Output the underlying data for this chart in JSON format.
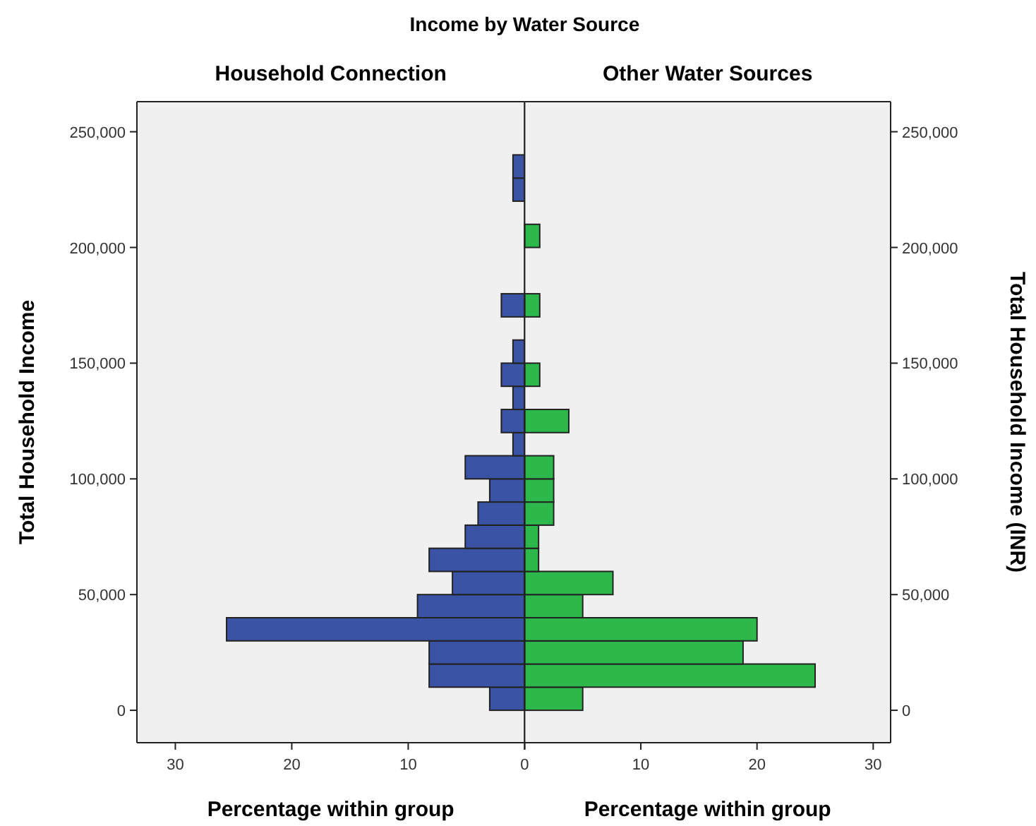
{
  "chart_data": [
    {
      "type": "histogram",
      "orientation": "horizontal",
      "title": "Income by Water Source",
      "subtitle": "Household Connection",
      "xlabel": "Percentage within group",
      "ylabel": "Total Household Income",
      "color": "#3a53a4",
      "bins": [
        0,
        10000,
        20000,
        30000,
        40000,
        50000,
        60000,
        70000,
        80000,
        90000,
        100000,
        110000,
        120000,
        130000,
        140000,
        150000,
        160000,
        170000,
        180000,
        190000,
        200000,
        210000,
        220000,
        230000,
        240000
      ],
      "values": [
        3.0,
        8.2,
        8.2,
        25.6,
        9.2,
        6.2,
        8.2,
        5.1,
        4.0,
        3.0,
        5.1,
        1.0,
        2.0,
        1.0,
        2.0,
        1.0,
        0,
        2.0,
        0,
        0,
        0,
        0,
        1.0,
        1.0
      ],
      "xlim": [
        33.3,
        0
      ],
      "xticks": [
        {
          "value": 0,
          "label": null
        },
        10,
        20,
        30
      ],
      "ylim": [
        -14000,
        263000
      ],
      "yticks": [
        0,
        {
          "value": 50000,
          "label": "50,000"
        },
        {
          "value": 100000,
          "label": "100,000"
        },
        {
          "value": 150000,
          "label": "150,000"
        },
        {
          "value": 200000,
          "label": "200,000"
        },
        {
          "value": 250000,
          "label": "250,000"
        }
      ]
    },
    {
      "type": "histogram",
      "orientation": "horizontal",
      "subtitle": "Other Water Sources",
      "xlabel": "Percentage within group",
      "ylabel": "Total Household Income (INR)",
      "color": "#2db84b",
      "bins": [
        0,
        10000,
        20000,
        30000,
        40000,
        50000,
        60000,
        70000,
        80000,
        90000,
        100000,
        110000,
        120000,
        130000,
        140000,
        150000,
        160000,
        170000,
        180000,
        190000,
        200000,
        210000,
        220000,
        230000,
        240000
      ],
      "values": [
        5.0,
        25.0,
        18.8,
        20.0,
        5.0,
        7.6,
        1.2,
        1.2,
        2.5,
        2.5,
        2.5,
        0,
        3.8,
        0,
        1.3,
        0,
        0,
        1.3,
        0,
        0,
        1.3,
        0,
        0,
        0
      ],
      "xlim": [
        0,
        31.5
      ],
      "xticks": [
        0,
        10,
        20,
        30
      ],
      "ylim": [
        -14000,
        263000
      ],
      "yticks": [
        0,
        {
          "value": 50000,
          "label": "50,000"
        },
        {
          "value": 100000,
          "label": "100,000"
        },
        {
          "value": 150000,
          "label": "150,000"
        },
        {
          "value": 200000,
          "label": "200,000"
        },
        {
          "value": 250000,
          "label": "250,000"
        }
      ]
    }
  ]
}
